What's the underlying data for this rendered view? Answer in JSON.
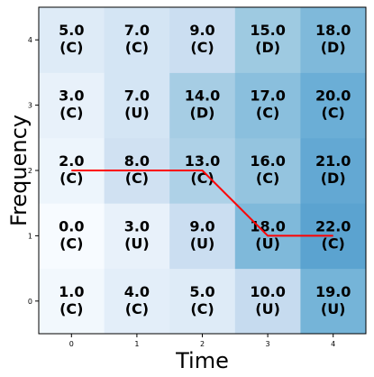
{
  "chart_data": {
    "type": "heatmap",
    "title": "",
    "xlabel": "Time",
    "ylabel": "Frequency",
    "x": [
      0,
      1,
      2,
      3,
      4
    ],
    "y": [
      0,
      1,
      2,
      3,
      4
    ],
    "xlim": [
      -0.5,
      4.5
    ],
    "ylim": [
      -0.5,
      4.5
    ],
    "color_scale": "Blues",
    "value_range": [
      0,
      22
    ],
    "values": [
      [
        1.0,
        4.0,
        5.0,
        10.0,
        19.0
      ],
      [
        0.0,
        3.0,
        9.0,
        18.0,
        22.0
      ],
      [
        2.0,
        8.0,
        13.0,
        16.0,
        21.0
      ],
      [
        3.0,
        7.0,
        14.0,
        17.0,
        20.0
      ],
      [
        5.0,
        7.0,
        9.0,
        15.0,
        18.0
      ]
    ],
    "labels": [
      [
        "C",
        "C",
        "C",
        "U",
        "U"
      ],
      [
        "C",
        "U",
        "U",
        "U",
        "C"
      ],
      [
        "C",
        "C",
        "C",
        "C",
        "D"
      ],
      [
        "C",
        "U",
        "D",
        "C",
        "C"
      ],
      [
        "C",
        "C",
        "C",
        "D",
        "D"
      ]
    ],
    "path": {
      "color": "#ff0000",
      "points": [
        [
          0,
          2
        ],
        [
          2,
          2
        ],
        [
          3,
          1
        ],
        [
          4,
          1
        ]
      ]
    },
    "grid": false,
    "legend": "none"
  }
}
